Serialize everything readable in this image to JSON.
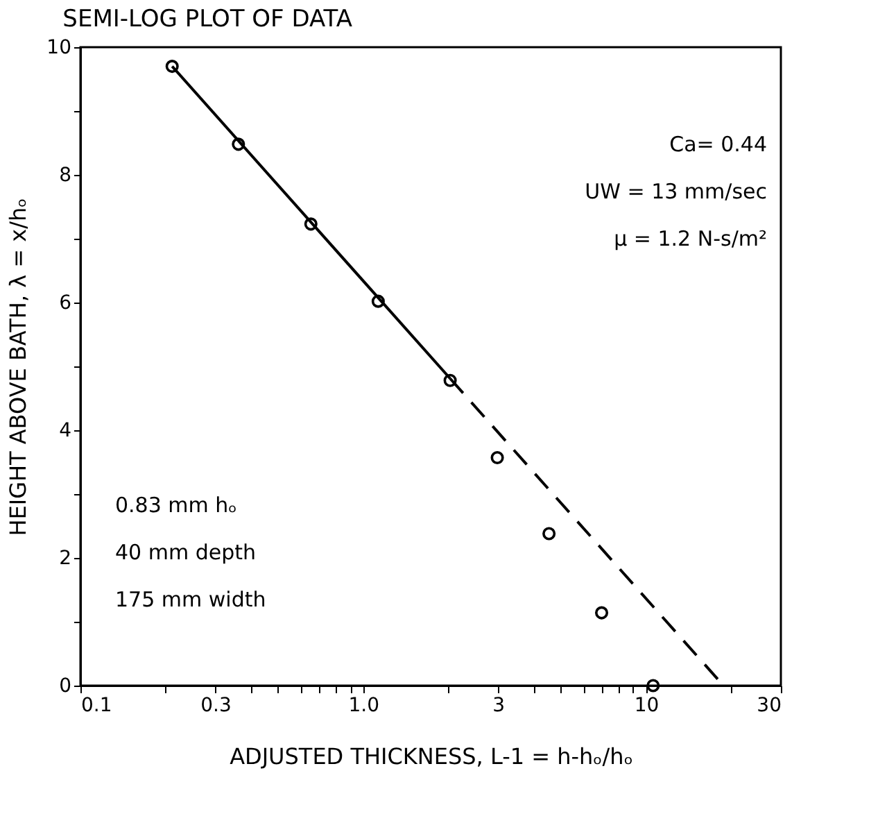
{
  "chart_data": {
    "type": "scatter",
    "title": "SEMI-LOG PLOT OF DATA",
    "xlabel": "ADJUSTED THICKNESS, L-1 = h-hₒ/hₒ",
    "ylabel": "HEIGHT ABOVE BATH, λ = x/hₒ",
    "x": [
      0.211,
      0.362,
      0.653,
      1.13,
      2.03,
      2.98,
      4.54,
      6.97,
      10.6
    ],
    "series": [
      {
        "color": "#000000",
        "marker": "circle",
        "values": [
          9.7,
          8.48,
          7.23,
          6.02,
          4.78,
          3.57,
          2.38,
          1.14,
          0
        ]
      },
      {
        "type": "line",
        "color": "#000000",
        "line_style": "solid",
        "marker": "none",
        "x": [
          0.211,
          2.03
        ],
        "values": [
          9.7,
          4.81
        ]
      },
      {
        "type": "line",
        "color": "#000000",
        "line_style": "dashed",
        "marker": "none",
        "x": [
          2.03,
          18.8
        ],
        "values": [
          4.81,
          0
        ]
      }
    ],
    "log": "x",
    "xlim": [
      0.1,
      30
    ],
    "ylim": [
      0,
      10
    ],
    "xticks": [
      0.1,
      {
        "value": 0.2,
        "label": null
      },
      0.3,
      {
        "value": 0.4,
        "label": null
      },
      {
        "value": 0.5,
        "label": null
      },
      {
        "value": 0.6,
        "label": null
      },
      {
        "value": 0.7,
        "label": null
      },
      {
        "value": 0.8,
        "label": null
      },
      {
        "value": 0.9,
        "label": null
      },
      {
        "value": 1,
        "label": "1.0"
      },
      {
        "value": 2,
        "label": null
      },
      3,
      {
        "value": 4,
        "label": null
      },
      {
        "value": 5,
        "label": null
      },
      {
        "value": 6,
        "label": null
      },
      {
        "value": 7,
        "label": null
      },
      {
        "value": 8,
        "label": null
      },
      {
        "value": 9,
        "label": null
      },
      10,
      {
        "value": 20,
        "label": null
      },
      30
    ],
    "yticks": [
      0,
      {
        "value": 1,
        "label": null
      },
      2,
      {
        "value": 3,
        "label": null
      },
      4,
      {
        "value": 5,
        "label": null
      },
      6,
      {
        "value": 7,
        "label": null
      },
      8,
      {
        "value": 9,
        "label": null
      },
      10
    ],
    "annotations": [
      "Ca= 0.44",
      "UW = 13 mm/sec",
      "μ = 1.2 N-s/m²",
      "0.83 mm hₒ",
      "40 mm depth",
      "175 mm width"
    ]
  }
}
